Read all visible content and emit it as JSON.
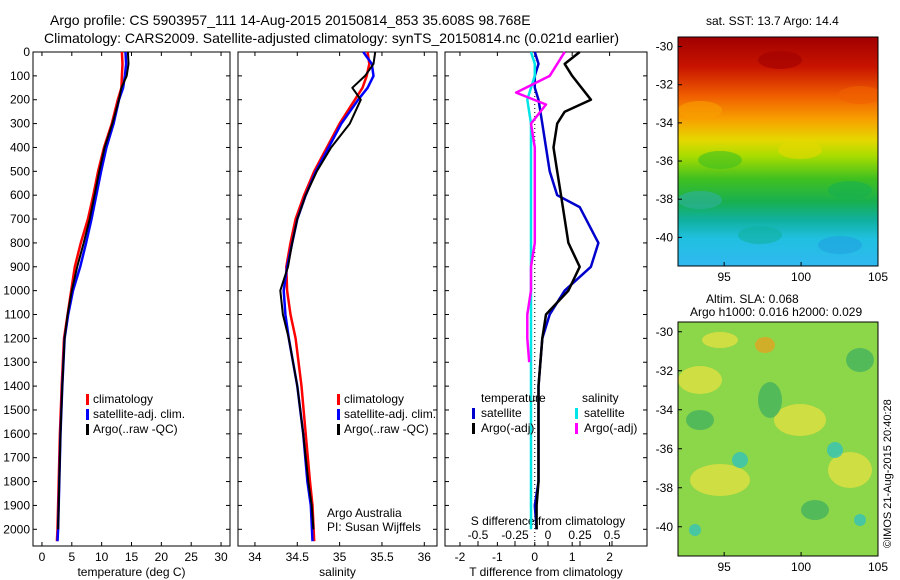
{
  "header": {
    "line1": "Argo profile: CS 5903957_111 14-Aug-2015 20150814_853 35.608S 98.768E",
    "line2": "Climatology: CARS2009. Satellite-adjusted climatology: synTS_20150814.nc (0.021d earlier)"
  },
  "credit": "©IMOS 21-Aug-2015 20:40:28",
  "sst_map": {
    "title": "sat. SST: 13.7 Argo: 14.4",
    "ylim": [
      -41.5,
      -29.5
    ],
    "xlim": [
      92,
      105
    ],
    "yticks": [
      -30,
      -32,
      -34,
      -36,
      -38,
      -40
    ],
    "ytick_labels": [
      "-30",
      "-32",
      "-34",
      "-36",
      "-38",
      "-40"
    ],
    "xticks": [
      95,
      100,
      105
    ],
    "xtick_labels": [
      "95",
      "100",
      "105"
    ]
  },
  "sla_map": {
    "line1": "Altim. SLA: 0.068",
    "line2": "Argo h1000: 0.016 h2000: 0.029",
    "ylim": [
      -41.5,
      -29.5
    ],
    "xlim": [
      92,
      105
    ],
    "yticks": [
      -30,
      -32,
      -34,
      -36,
      -38,
      -40
    ],
    "ytick_labels": [
      "-30",
      "-32",
      "-34",
      "-36",
      "-38",
      "-40"
    ],
    "xticks": [
      95,
      100,
      105
    ],
    "xtick_labels": [
      "95",
      "100",
      "105"
    ]
  },
  "chart_data": [
    {
      "type": "line",
      "xlabel": "temperature (deg C)",
      "xlim": [
        -1.5,
        31.5
      ],
      "ylim": [
        2070,
        0
      ],
      "xticks": [
        0,
        5,
        10,
        15,
        20,
        25,
        30
      ],
      "xtick_labels": [
        "0",
        "5",
        "10",
        "15",
        "20",
        "25",
        "30"
      ],
      "yticks": [
        0,
        100,
        200,
        300,
        400,
        500,
        600,
        700,
        800,
        900,
        1000,
        1100,
        1200,
        1300,
        1400,
        1500,
        1600,
        1700,
        1800,
        1900,
        2000
      ],
      "ytick_labels": [
        "0",
        "100",
        "200",
        "300",
        "400",
        "500",
        "600",
        "700",
        "800",
        "900",
        "1000",
        "1100",
        "1200",
        "1300",
        "1400",
        "1500",
        "1600",
        "1700",
        "1800",
        "1900",
        "2000"
      ],
      "legend": [
        "climatology",
        "satellite-adj. clim.",
        "Argo(..raw -QC)"
      ],
      "series": [
        {
          "name": "climatology",
          "color": "#ff0000",
          "x": [
            13.4,
            13.5,
            13.4,
            13.3,
            12.7,
            11.7,
            10.4,
            9.4,
            8.6,
            7.7,
            6.5,
            5.5,
            4.9,
            4.3,
            3.7,
            3.3,
            3.0,
            2.8,
            2.7,
            2.6,
            2.5
          ],
          "y": [
            0,
            50,
            100,
            150,
            200,
            300,
            400,
            500,
            600,
            700,
            800,
            900,
            1000,
            1100,
            1200,
            1400,
            1600,
            1800,
            1900,
            2000,
            2050
          ]
        },
        {
          "name": "satellite-adj. clim.",
          "color": "#0000ff",
          "x": [
            14.0,
            14.1,
            13.9,
            13.6,
            12.9,
            12.0,
            10.8,
            9.9,
            9.1,
            8.3,
            7.4,
            6.4,
            5.2,
            4.4,
            3.8,
            3.4,
            3.1,
            2.9,
            2.8,
            2.7,
            2.6
          ],
          "y": [
            0,
            50,
            100,
            150,
            200,
            300,
            400,
            500,
            600,
            700,
            800,
            900,
            1000,
            1100,
            1200,
            1400,
            1600,
            1800,
            1900,
            2000,
            2050
          ]
        },
        {
          "name": "Argo(..raw -QC)",
          "color": "#000000",
          "x": [
            14.4,
            14.5,
            14.2,
            13.3,
            12.9,
            11.8,
            10.5,
            9.6,
            8.8,
            8.0,
            7.0,
            5.9,
            5.0,
            4.3,
            3.8,
            3.4,
            3.1,
            2.9,
            2.8,
            2.7
          ],
          "y": [
            0,
            50,
            100,
            150,
            200,
            300,
            400,
            500,
            600,
            700,
            800,
            900,
            1000,
            1100,
            1200,
            1400,
            1600,
            1800,
            1900,
            2000
          ]
        }
      ]
    },
    {
      "type": "line",
      "xlabel": "salinity",
      "xlim": [
        33.8,
        36.15
      ],
      "ylim": [
        2070,
        0
      ],
      "xticks": [
        34,
        34.5,
        35,
        35.5,
        36
      ],
      "xtick_labels": [
        "34",
        "34.5",
        "35",
        "35.5",
        "36"
      ],
      "yticks": [
        0,
        100,
        200,
        300,
        400,
        500,
        600,
        700,
        800,
        900,
        1000,
        1100,
        1200,
        1300,
        1400,
        1500,
        1600,
        1700,
        1800,
        1900,
        2000
      ],
      "legend": [
        "climatology",
        "satellite-adj. clim.",
        "Argo(..raw -QC)"
      ],
      "annotation": [
        "Argo Australia",
        "PI: Susan Wijffels"
      ],
      "series": [
        {
          "name": "climatology",
          "color": "#ff0000",
          "x": [
            35.33,
            35.35,
            35.32,
            35.27,
            35.18,
            35.0,
            34.85,
            34.7,
            34.58,
            34.48,
            34.42,
            34.37,
            34.38,
            34.42,
            34.48,
            34.55,
            34.6,
            34.65,
            34.68,
            34.7
          ],
          "y": [
            0,
            50,
            100,
            150,
            200,
            300,
            400,
            500,
            600,
            700,
            800,
            900,
            1000,
            1100,
            1200,
            1400,
            1600,
            1800,
            1900,
            2050
          ]
        },
        {
          "name": "satellite-adj. clim.",
          "color": "#0000ff",
          "x": [
            35.28,
            35.38,
            35.4,
            35.33,
            35.22,
            35.02,
            34.87,
            34.72,
            34.6,
            34.5,
            34.44,
            34.38,
            34.34,
            34.36,
            34.4,
            34.5,
            34.57,
            34.62,
            34.66,
            34.68
          ],
          "y": [
            0,
            50,
            100,
            150,
            200,
            300,
            400,
            500,
            600,
            700,
            800,
            900,
            1000,
            1100,
            1200,
            1400,
            1600,
            1800,
            1900,
            2050
          ]
        },
        {
          "name": "Argo(..raw -QC)",
          "color": "#000000",
          "x": [
            35.42,
            35.4,
            35.3,
            35.15,
            35.25,
            35.12,
            34.9,
            34.73,
            34.6,
            34.5,
            34.44,
            34.39,
            34.3,
            34.33,
            34.4,
            34.5,
            34.57,
            34.63,
            34.67,
            34.69
          ],
          "y": [
            0,
            50,
            100,
            150,
            200,
            300,
            400,
            500,
            600,
            700,
            800,
            900,
            1000,
            1100,
            1200,
            1400,
            1600,
            1800,
            1900,
            2000
          ]
        }
      ]
    },
    {
      "type": "line",
      "xlabel": "T difference from climatology",
      "xlim": [
        -2.4,
        3.0
      ],
      "ylim": [
        2070,
        0
      ],
      "xticks": [
        -2,
        -1,
        0,
        1,
        2
      ],
      "xtick_labels": [
        "-2",
        "-1",
        "0",
        "1",
        "2"
      ],
      "s_axis_label": "S difference from climatology",
      "s_ticks": [
        -0.5,
        -0.25,
        0,
        0.25,
        0.5
      ],
      "s_tick_labels": [
        "-0.5",
        "-0.25",
        "0",
        "0.25",
        "0.5"
      ],
      "yticks": [
        0,
        100,
        200,
        300,
        400,
        500,
        600,
        700,
        800,
        900,
        1000,
        1100,
        1200,
        1300,
        1400,
        1500,
        1600,
        1700,
        1800,
        1900,
        2000
      ],
      "legend_headers": [
        "temperature",
        "salinity"
      ],
      "legend": [
        "satellite",
        "Argo(-adj)",
        "satellite",
        "Argo(-adj)"
      ],
      "series": [
        {
          "name": "satellite",
          "group": "temperature",
          "color": "#0000cc",
          "x": [
            0.0,
            0.1,
            0.0,
            0.0,
            0.1,
            0.2,
            0.3,
            0.4,
            0.6,
            1.2,
            1.7,
            1.5,
            0.8,
            0.4,
            0.2,
            0.1,
            0.1,
            0.1,
            0.0,
            0.05
          ],
          "y": [
            0,
            50,
            100,
            150,
            200,
            300,
            400,
            500,
            600,
            650,
            800,
            900,
            1000,
            1100,
            1200,
            1400,
            1600,
            1800,
            1900,
            2000
          ]
        },
        {
          "name": "Argo(-adj)",
          "group": "temperature",
          "color": "#000000",
          "x": [
            1.2,
            0.8,
            1.0,
            1.5,
            0.8,
            0.6,
            0.5,
            0.6,
            0.7,
            0.8,
            0.9,
            1.2,
            0.9,
            0.3,
            0.2,
            0.1,
            0.1,
            0.1,
            0.05,
            0.05
          ],
          "y": [
            0,
            50,
            100,
            200,
            250,
            300,
            400,
            500,
            600,
            700,
            800,
            900,
            1000,
            1100,
            1200,
            1400,
            1600,
            1800,
            1900,
            2000
          ]
        },
        {
          "name": "satellite",
          "group": "salinity",
          "color": "#00e5e5",
          "x": [
            -0.1,
            0.0,
            0.0,
            -0.1,
            -0.2,
            -0.1,
            -0.1,
            -0.1,
            -0.1,
            -0.1,
            -0.1,
            -0.1,
            -0.1,
            -0.1,
            -0.1,
            -0.1,
            -0.1,
            -0.1,
            -0.1,
            -0.1
          ],
          "y": [
            0,
            50,
            100,
            150,
            200,
            300,
            400,
            500,
            600,
            700,
            800,
            900,
            1000,
            1100,
            1200,
            1400,
            1600,
            1800,
            1900,
            2000
          ]
        },
        {
          "name": "Argo(-adj)",
          "group": "salinity",
          "color": "#ff00ff",
          "x": [
            0.8,
            0.6,
            0.4,
            -0.5,
            0.3,
            -0.1,
            0.0,
            0.0,
            0.0,
            0.0,
            0.0,
            -0.1,
            -0.1,
            -0.2,
            -0.2,
            -0.15
          ],
          "y": [
            0,
            50,
            100,
            170,
            220,
            300,
            400,
            500,
            600,
            700,
            800,
            900,
            1000,
            1100,
            1200,
            1300
          ]
        }
      ]
    }
  ]
}
